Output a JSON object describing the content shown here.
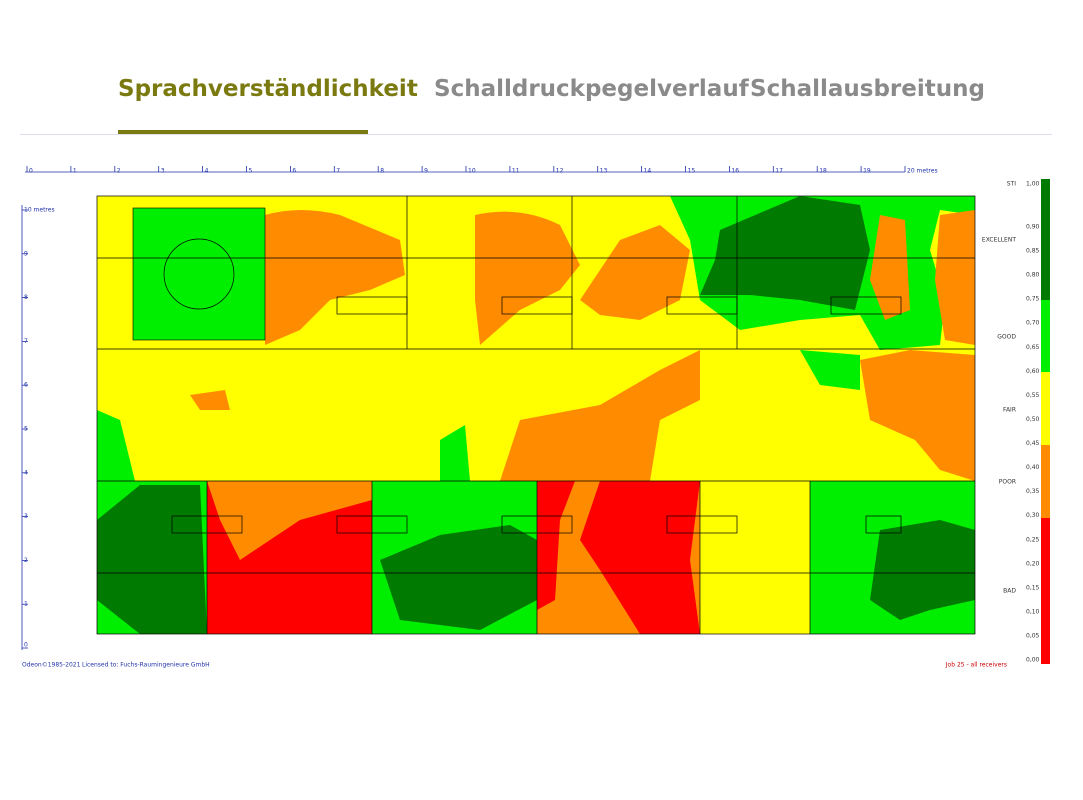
{
  "tabs": [
    {
      "label": "Sprachverständlichkeit",
      "active": true
    },
    {
      "label": "Schalldruckpegelverlauf"
    },
    {
      "label": "Schallausbreitung"
    }
  ],
  "ruler": {
    "x_labels": [
      "0",
      "1",
      "2",
      "3",
      "4",
      "5",
      "6",
      "7",
      "8",
      "9",
      "10",
      "11",
      "12",
      "13",
      "14",
      "15",
      "16",
      "17",
      "18",
      "19",
      "20 metres"
    ],
    "y_labels": [
      "10 metres",
      "9",
      "8",
      "7",
      "6",
      "5",
      "4",
      "3",
      "2",
      "1",
      "0"
    ]
  },
  "legend": {
    "title": "STI",
    "scale_labels": [
      "1,00",
      "0,90",
      "0,85",
      "0,80",
      "0,75",
      "0,70",
      "0,65",
      "0,60",
      "0,55",
      "0,50",
      "0,45",
      "0,40",
      "0,35",
      "0,30",
      "0,25",
      "0,20",
      "0,15",
      "0,10",
      "0,05",
      "0,00"
    ],
    "ratings": [
      "EXCELLENT",
      "GOOD",
      "FAIR",
      "POOR",
      "BAD"
    ]
  },
  "footer": {
    "copyright": "Odeon©1985-2021",
    "license": "Licensed to: Fuchs-Raumingenieure GmbH",
    "job": "Job 25 - all receivers"
  }
}
